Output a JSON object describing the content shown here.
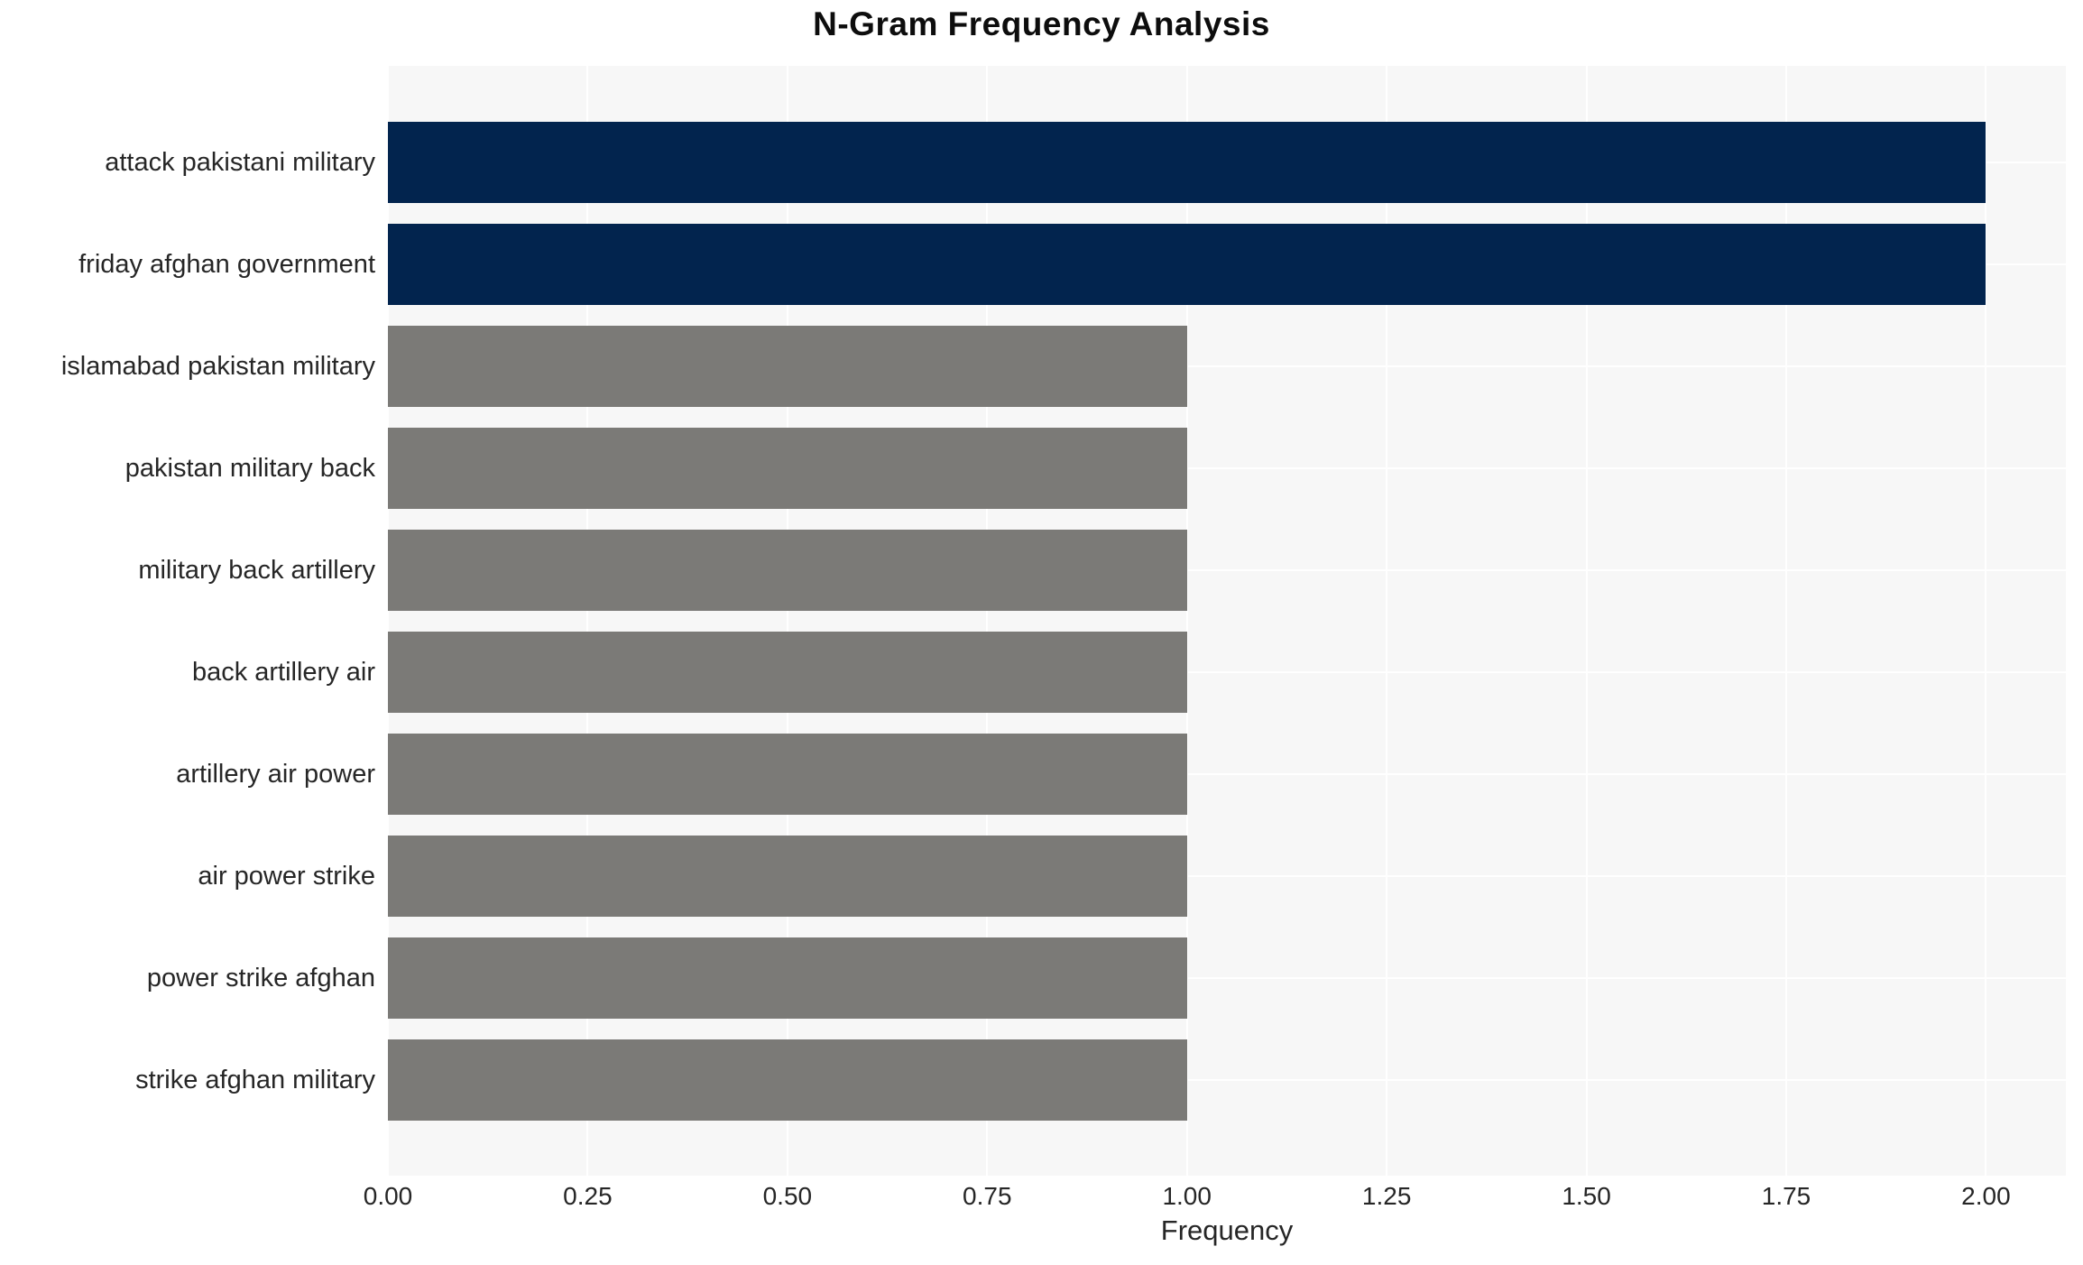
{
  "chart_data": {
    "type": "bar",
    "orientation": "horizontal",
    "title": "N-Gram Frequency Analysis",
    "xlabel": "Frequency",
    "ylabel": "",
    "categories": [
      "attack pakistani military",
      "friday afghan government",
      "islamabad pakistan military",
      "pakistan military back",
      "military back artillery",
      "back artillery air",
      "artillery air power",
      "air power strike",
      "power strike afghan",
      "strike afghan military"
    ],
    "values": [
      2.0,
      2.0,
      1.0,
      1.0,
      1.0,
      1.0,
      1.0,
      1.0,
      1.0,
      1.0
    ],
    "bar_colors": [
      "#02244e",
      "#02244e",
      "#7b7a77",
      "#7b7a77",
      "#7b7a77",
      "#7b7a77",
      "#7b7a77",
      "#7b7a77",
      "#7b7a77",
      "#7b7a77"
    ],
    "xtick_values": [
      0,
      0.25,
      0.5,
      0.75,
      1.0,
      1.25,
      1.5,
      1.75,
      2.0
    ],
    "xtick_labels": [
      "0.00",
      "0.25",
      "0.50",
      "0.75",
      "1.00",
      "1.25",
      "1.50",
      "1.75",
      "2.00"
    ],
    "xlim": [
      0,
      2.1
    ],
    "grid": true,
    "legend": false,
    "colors": {
      "highlight": "#02244e",
      "muted": "#7b7a77",
      "plot_background": "#f7f7f7",
      "gridline": "#ffffff",
      "text": "#262626"
    }
  }
}
